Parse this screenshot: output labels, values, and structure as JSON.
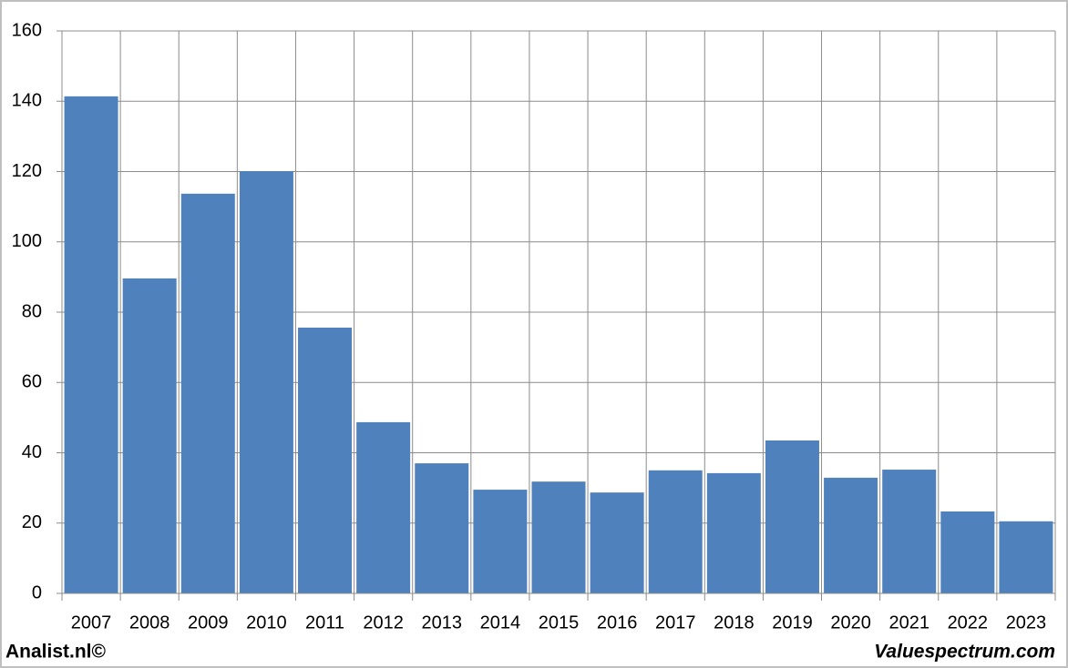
{
  "chart_data": {
    "type": "bar",
    "categories": [
      "2007",
      "2008",
      "2009",
      "2010",
      "2011",
      "2012",
      "2013",
      "2014",
      "2015",
      "2016",
      "2017",
      "2018",
      "2019",
      "2020",
      "2021",
      "2022",
      "2023"
    ],
    "values": [
      141.4,
      89.6,
      113.7,
      120.1,
      75.6,
      48.7,
      37.0,
      29.5,
      31.8,
      28.7,
      35.0,
      34.2,
      43.5,
      32.9,
      35.2,
      23.3,
      20.5
    ],
    "color": "#4f81bd",
    "ylim": [
      0,
      160
    ],
    "yticks": [
      0,
      20,
      40,
      60,
      80,
      100,
      120,
      140,
      160
    ],
    "grid": true,
    "credits": [
      "Analist.nl©",
      "Valuespectrum.com"
    ]
  }
}
